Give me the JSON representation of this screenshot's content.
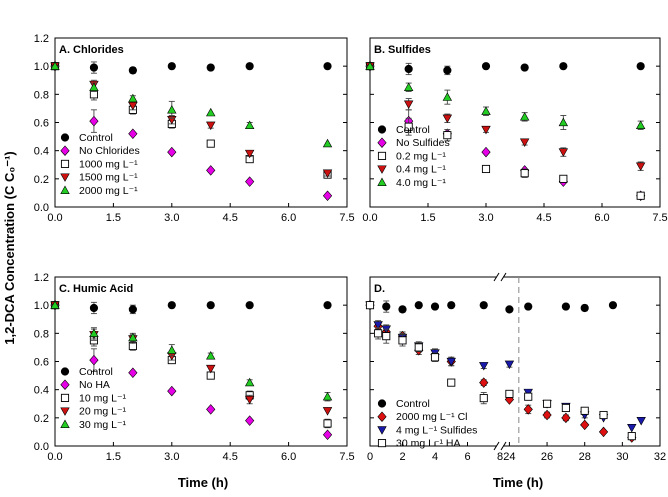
{
  "chart_data": {
    "type": "scatter",
    "ylabel": "1,2-DCA Concentration (C C₀⁻¹)",
    "xlabel": "Time (h)",
    "panels": [
      {
        "id": "A",
        "title": "A. Chlorides",
        "xlim": [
          0,
          7.5
        ],
        "ylim": [
          0,
          1.2
        ],
        "xticks": [
          {
            "v": 0,
            "label": "0.0"
          },
          {
            "v": 1.5,
            "label": "1.5"
          },
          {
            "v": 3,
            "label": "3.0"
          },
          {
            "v": 4.5,
            "label": "4.5"
          },
          {
            "v": 6,
            "label": "6.0"
          },
          {
            "v": 7.5,
            "label": "7.5"
          }
        ],
        "yticks": [
          {
            "v": 0,
            "label": "0.0"
          },
          {
            "v": 0.2,
            "label": "0.2"
          },
          {
            "v": 0.4,
            "label": "0.4"
          },
          {
            "v": 0.6,
            "label": "0.6"
          },
          {
            "v": 0.8,
            "label": "0.8"
          },
          {
            "v": 1.0,
            "label": "1.0"
          },
          {
            "v": 1.2,
            "label": "1.2"
          }
        ],
        "series": [
          {
            "name": "Control",
            "marker": "circle",
            "color": "#000000",
            "x": [
              0,
              1,
              2,
              3,
              4,
              5,
              7
            ],
            "y": [
              1.0,
              0.99,
              0.97,
              1.0,
              0.99,
              1.0,
              1.0
            ],
            "err": [
              0,
              0.04,
              0.02,
              0,
              0,
              0,
              0
            ]
          },
          {
            "name": "No Chlorides",
            "marker": "diamond",
            "color": "#e600e6",
            "x": [
              0,
              1,
              2,
              3,
              4,
              5,
              7
            ],
            "y": [
              1.0,
              0.61,
              0.52,
              0.39,
              0.26,
              0.18,
              0.08
            ],
            "err": [
              0,
              0.08,
              0,
              0,
              0,
              0,
              0
            ]
          },
          {
            "name": "1000 mg L⁻¹",
            "marker": "square",
            "color": "#ffffff",
            "x": [
              0,
              1,
              2,
              3,
              4,
              5,
              7
            ],
            "y": [
              1.0,
              0.8,
              0.69,
              0.59,
              0.45,
              0.34,
              0.23
            ],
            "err": [
              0,
              0.04,
              0.03,
              0.03,
              0,
              0.02,
              0.02
            ]
          },
          {
            "name": "1500 mg L⁻¹",
            "marker": "triangle-down",
            "color": "#cc1111",
            "x": [
              0,
              1,
              2,
              3,
              4,
              5,
              7
            ],
            "y": [
              1.0,
              0.87,
              0.72,
              0.62,
              0.58,
              0.38,
              0.24
            ],
            "err": [
              0,
              0.03,
              0.03,
              0.03,
              0.02,
              0.02,
              0.02
            ]
          },
          {
            "name": "2000 mg L⁻¹",
            "marker": "triangle-up",
            "color": "#22cc22",
            "x": [
              0,
              1,
              2,
              3,
              4,
              5,
              7
            ],
            "y": [
              1.0,
              0.85,
              0.77,
              0.69,
              0.67,
              0.58,
              0.45
            ],
            "err": [
              0,
              0.03,
              0.02,
              0.06,
              0,
              0.02,
              0
            ]
          }
        ]
      },
      {
        "id": "B",
        "title": "B. Sulfides",
        "xlim": [
          0,
          7.5
        ],
        "ylim": [
          0,
          1.2
        ],
        "xticks": [
          {
            "v": 0,
            "label": "0.0"
          },
          {
            "v": 1.5,
            "label": "1.5"
          },
          {
            "v": 3,
            "label": "3.0"
          },
          {
            "v": 4.5,
            "label": "4.5"
          },
          {
            "v": 6,
            "label": "6.0"
          },
          {
            "v": 7.5,
            "label": "7.5"
          }
        ],
        "yticks": [],
        "series": [
          {
            "name": "Control",
            "marker": "circle",
            "color": "#000000",
            "x": [
              0,
              1,
              2,
              3,
              4,
              5,
              7
            ],
            "y": [
              1.0,
              0.98,
              0.97,
              1.0,
              0.99,
              1.0,
              1.0
            ],
            "err": [
              0,
              0.04,
              0.03,
              0,
              0,
              0,
              0
            ]
          },
          {
            "name": "No Sulfides",
            "marker": "diamond",
            "color": "#e600e6",
            "x": [
              0,
              1,
              2,
              3,
              4,
              5,
              7
            ],
            "y": [
              1.0,
              0.61,
              0.52,
              0.39,
              0.26,
              0.18,
              0.08
            ],
            "err": [
              0,
              0.08,
              0,
              0,
              0,
              0,
              0
            ]
          },
          {
            "name": "0.2 mg L⁻¹",
            "marker": "square",
            "color": "#ffffff",
            "x": [
              0,
              1,
              2,
              3,
              4,
              5,
              7
            ],
            "y": [
              1.0,
              0.57,
              0.51,
              0.27,
              0.24,
              0.2,
              0.08
            ],
            "err": [
              0,
              0.06,
              0.04,
              0,
              0.03,
              0,
              0.02
            ]
          },
          {
            "name": "0.4 mg L⁻¹",
            "marker": "triangle-down",
            "color": "#cc1111",
            "x": [
              0,
              1,
              2,
              3,
              4,
              5,
              7
            ],
            "y": [
              1.0,
              0.73,
              0.63,
              0.55,
              0.46,
              0.39,
              0.29
            ],
            "err": [
              0,
              0.04,
              0.03,
              0.02,
              0.02,
              0.03,
              0.03
            ]
          },
          {
            "name": "4.0 mg L⁻¹",
            "marker": "triangle-up",
            "color": "#22cc22",
            "x": [
              0,
              1,
              2,
              3,
              4,
              5,
              7
            ],
            "y": [
              1.0,
              0.85,
              0.78,
              0.68,
              0.64,
              0.6,
              0.58
            ],
            "err": [
              0,
              0.03,
              0.05,
              0.03,
              0.03,
              0.05,
              0.03
            ]
          }
        ]
      },
      {
        "id": "C",
        "title": "C. Humic Acid",
        "xlim": [
          0,
          7.5
        ],
        "ylim": [
          0,
          1.2
        ],
        "xticks": [
          {
            "v": 0,
            "label": "0.0"
          },
          {
            "v": 1.5,
            "label": "1.5"
          },
          {
            "v": 3,
            "label": "3.0"
          },
          {
            "v": 4.5,
            "label": "4.5"
          },
          {
            "v": 6,
            "label": "6.0"
          },
          {
            "v": 7.5,
            "label": "7.5"
          }
        ],
        "yticks": [
          {
            "v": 0,
            "label": "0.0"
          },
          {
            "v": 0.2,
            "label": "0.2"
          },
          {
            "v": 0.4,
            "label": "0.4"
          },
          {
            "v": 0.6,
            "label": "0.6"
          },
          {
            "v": 0.8,
            "label": "0.8"
          },
          {
            "v": 1.0,
            "label": "1.0"
          },
          {
            "v": 1.2,
            "label": "1.2"
          }
        ],
        "series": [
          {
            "name": "Control",
            "marker": "circle",
            "color": "#000000",
            "x": [
              0,
              1,
              2,
              3,
              4,
              5,
              7
            ],
            "y": [
              1.0,
              0.98,
              0.97,
              1.0,
              1.0,
              1.0,
              1.0
            ],
            "err": [
              0,
              0.04,
              0.03,
              0,
              0,
              0,
              0
            ]
          },
          {
            "name": "No HA",
            "marker": "diamond",
            "color": "#e600e6",
            "x": [
              0,
              1,
              2,
              3,
              4,
              5,
              7
            ],
            "y": [
              1.0,
              0.61,
              0.52,
              0.39,
              0.26,
              0.18,
              0.08
            ],
            "err": [
              0,
              0.08,
              0,
              0,
              0,
              0,
              0
            ]
          },
          {
            "name": "10 mg L⁻¹",
            "marker": "square",
            "color": "#ffffff",
            "x": [
              0,
              1,
              2,
              3,
              4,
              5,
              7
            ],
            "y": [
              1.0,
              0.75,
              0.71,
              0.61,
              0.5,
              0.36,
              0.16
            ],
            "err": [
              0,
              0.04,
              0.03,
              0.02,
              0,
              0.03,
              0.03
            ]
          },
          {
            "name": "20 mg L⁻¹",
            "marker": "triangle-down",
            "color": "#cc1111",
            "x": [
              0,
              1,
              2,
              3,
              4,
              5,
              7
            ],
            "y": [
              1.0,
              0.79,
              0.76,
              0.64,
              0.55,
              0.33,
              0.25
            ],
            "err": [
              0,
              0.04,
              0.03,
              0.03,
              0,
              0.03,
              0
            ]
          },
          {
            "name": "30 mg L⁻¹",
            "marker": "triangle-up",
            "color": "#22cc22",
            "x": [
              0,
              1,
              2,
              3,
              4,
              5,
              7
            ],
            "y": [
              1.0,
              0.8,
              0.77,
              0.68,
              0.64,
              0.45,
              0.35
            ],
            "err": [
              0,
              0.04,
              0.03,
              0.04,
              0.02,
              0.02,
              0.03
            ]
          }
        ]
      },
      {
        "id": "D",
        "title": "D.",
        "break_axis": true,
        "ylim": [
          0,
          1.2
        ],
        "segments": [
          {
            "xlim": [
              0,
              8
            ]
          },
          {
            "xlim": [
              23.5,
              32
            ]
          }
        ],
        "divider_x": 24.5,
        "xticks": [
          {
            "v": 0,
            "label": "0"
          },
          {
            "v": 2,
            "label": "2"
          },
          {
            "v": 4,
            "label": "4"
          },
          {
            "v": 6,
            "label": "6"
          },
          {
            "v": 8,
            "label": "8"
          },
          {
            "v": 24,
            "label": "24"
          },
          {
            "v": 26,
            "label": "26"
          },
          {
            "v": 28,
            "label": "28"
          },
          {
            "v": 30,
            "label": "30"
          },
          {
            "v": 32,
            "label": "32"
          }
        ],
        "yticks": [],
        "series": [
          {
            "name": "Control",
            "marker": "circle",
            "color": "#000000",
            "x": [
              0,
              1,
              2,
              3,
              4,
              5,
              7,
              24,
              25,
              27,
              28,
              29.5
            ],
            "y": [
              1.0,
              0.99,
              0.97,
              1.0,
              0.99,
              1.0,
              1.0,
              0.97,
              0.99,
              0.99,
              0.98,
              1.0
            ],
            "err": [
              0,
              0.04,
              0.02,
              0,
              0,
              0,
              0,
              0,
              0,
              0,
              0.02,
              0
            ]
          },
          {
            "name": "2000 mg L⁻¹ Cl",
            "marker": "diamond",
            "color": "#dd1111",
            "x": [
              0,
              0.5,
              1,
              2,
              3,
              4,
              5,
              7,
              24,
              25,
              26,
              27,
              28,
              29,
              30.5
            ],
            "y": [
              1.0,
              0.85,
              0.81,
              0.78,
              0.68,
              0.65,
              0.6,
              0.45,
              0.33,
              0.26,
              0.22,
              0.2,
              0.15,
              0.1,
              0.06
            ],
            "err": [
              0,
              0.03,
              0.04,
              0.03,
              0.03,
              0.02,
              0.03,
              0.02,
              0,
              0.03,
              0.02,
              0.02,
              0,
              0,
              0
            ]
          },
          {
            "name": "4 mg L⁻¹ Sulfides",
            "marker": "triangle-down",
            "color": "#1a1aaa",
            "x": [
              0,
              0.5,
              1,
              2,
              3,
              4,
              5,
              7,
              24,
              25,
              26,
              27,
              28,
              29,
              30.5,
              31
            ],
            "y": [
              1.0,
              0.86,
              0.83,
              0.77,
              0.71,
              0.66,
              0.6,
              0.57,
              0.58,
              0.38,
              0.3,
              0.28,
              0.22,
              0.2,
              0.13,
              0.18
            ],
            "err": [
              0,
              0.03,
              0.03,
              0.03,
              0.03,
              0.03,
              0.03,
              0.02,
              0.02,
              0.02,
              0.02,
              0.02,
              0.02,
              0,
              0,
              0
            ]
          },
          {
            "name": "30 mg L⁻¹ HA",
            "marker": "square",
            "color": "#ffffff",
            "x": [
              0,
              0.5,
              1,
              2,
              3,
              4,
              5,
              7,
              24,
              25,
              26,
              27,
              28,
              29,
              30.5
            ],
            "y": [
              1.0,
              0.8,
              0.78,
              0.75,
              0.7,
              0.63,
              0.45,
              0.34,
              0.37,
              0.35,
              0.3,
              0.27,
              0.25,
              0.22,
              0.07
            ],
            "err": [
              0,
              0.04,
              0.05,
              0.04,
              0.03,
              0.03,
              0.02,
              0.04,
              0,
              0.02,
              0.02,
              0.02,
              0.02,
              0,
              0
            ]
          }
        ]
      }
    ]
  }
}
